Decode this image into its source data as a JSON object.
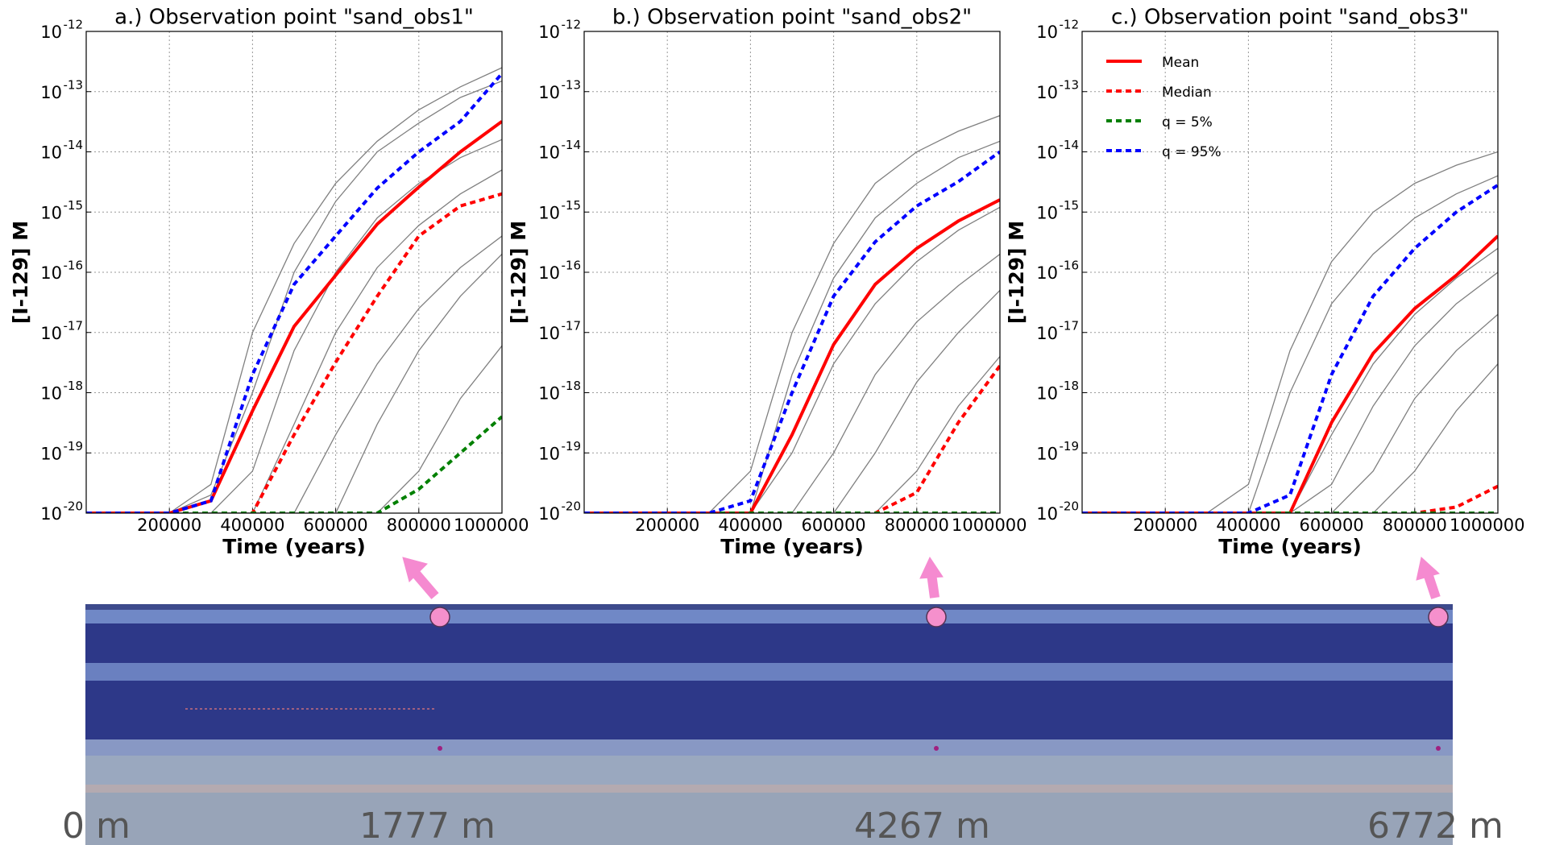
{
  "chart_data": [
    {
      "type": "line",
      "title": "a.) Observation point \"sand_obs1\"",
      "xlabel": "Time (years)",
      "ylabel": "[I-129] M",
      "x": [
        0,
        100000,
        200000,
        300000,
        400000,
        500000,
        600000,
        700000,
        800000,
        900000,
        1000000
      ],
      "xlim": [
        0,
        1000000
      ],
      "xticks": [
        200000,
        400000,
        600000,
        800000,
        1000000
      ],
      "ylim": [
        1e-20,
        1e-12
      ],
      "log_y": true,
      "grid": true,
      "yticks": [
        {
          "value": 1e-20,
          "label": "10",
          "exponent": "-20"
        },
        {
          "value": 1e-19,
          "label": "10",
          "exponent": "-19"
        },
        {
          "value": 1e-18,
          "label": "10",
          "exponent": "-18"
        },
        {
          "value": 1e-17,
          "label": "10",
          "exponent": "-17"
        },
        {
          "value": 1e-16,
          "label": "10",
          "exponent": "-16"
        },
        {
          "value": 1e-15,
          "label": "10",
          "exponent": "-15"
        },
        {
          "value": 1e-14,
          "label": "10",
          "exponent": "-14"
        },
        {
          "value": 1e-13,
          "label": "10",
          "exponent": "-13"
        },
        {
          "value": 1e-12,
          "label": "10",
          "exponent": "-12"
        }
      ],
      "series": [
        {
          "color": "#808080",
          "values": [
            1e-20,
            1e-20,
            1e-20,
            3e-20,
            1e-17,
            3e-16,
            3e-15,
            1.5e-14,
            5e-14,
            1.2e-13,
            2.5e-13
          ]
        },
        {
          "color": "#808080",
          "values": [
            1e-20,
            1e-20,
            1e-20,
            1e-20,
            5e-20,
            5e-18,
            1e-16,
            8e-16,
            3e-15,
            8e-15,
            1.6e-14
          ]
        },
        {
          "color": "#808080",
          "values": [
            1e-20,
            1e-20,
            1e-20,
            1e-20,
            1e-20,
            3e-19,
            1e-17,
            1.2e-16,
            6e-16,
            2e-15,
            5e-15
          ]
        },
        {
          "color": "#808080",
          "values": [
            1e-20,
            1e-20,
            1e-20,
            1e-20,
            1e-20,
            1e-20,
            2e-19,
            3e-18,
            2.5e-17,
            1.2e-16,
            4e-16
          ]
        },
        {
          "color": "#808080",
          "values": [
            1e-20,
            1e-20,
            1e-20,
            1e-20,
            1e-20,
            1e-20,
            1e-20,
            3e-19,
            5e-18,
            4e-17,
            2e-16
          ]
        },
        {
          "color": "#808080",
          "values": [
            1e-20,
            1e-20,
            1e-20,
            1e-20,
            1e-20,
            1e-20,
            1e-20,
            1e-20,
            5e-20,
            8e-19,
            6e-18
          ]
        },
        {
          "color": "#808080",
          "values": [
            1e-20,
            1e-20,
            1e-20,
            2e-20,
            1e-18,
            1e-16,
            1.5e-15,
            1e-14,
            3e-14,
            8e-14,
            1.5e-13
          ]
        },
        {
          "name": "Mean",
          "color": "#ff0000",
          "linestyle": "solid",
          "values": [
            1e-20,
            1e-20,
            1e-20,
            1.6e-20,
            5e-19,
            1.26e-17,
            8.9e-17,
            6.3e-16,
            2.6e-15,
            1e-14,
            3.2e-14
          ]
        },
        {
          "name": "Median",
          "color": "#ff0000",
          "linestyle": "dashed",
          "values": [
            1e-20,
            1e-20,
            1e-20,
            1e-20,
            1e-20,
            2e-19,
            3.2e-18,
            4e-17,
            4e-16,
            1.26e-15,
            2e-15
          ]
        },
        {
          "name": "q = 5%",
          "color": "#008000",
          "linestyle": "dashed",
          "values": [
            1e-20,
            1e-20,
            1e-20,
            1e-20,
            1e-20,
            1e-20,
            1e-20,
            1e-20,
            2.5e-20,
            1e-19,
            4e-19
          ]
        },
        {
          "name": "q = 95%",
          "color": "#0000ff",
          "linestyle": "dashed",
          "values": [
            1e-20,
            1e-20,
            1e-20,
            1.6e-20,
            2e-18,
            6.3e-17,
            4e-16,
            2.5e-15,
            1e-14,
            3.2e-14,
            2e-13
          ]
        }
      ]
    },
    {
      "type": "line",
      "title": "b.) Observation point \"sand_obs2\"",
      "xlabel": "Time (years)",
      "ylabel": "[I-129] M",
      "x": [
        0,
        100000,
        200000,
        300000,
        400000,
        500000,
        600000,
        700000,
        800000,
        900000,
        1000000
      ],
      "xlim": [
        0,
        1000000
      ],
      "xticks": [
        200000,
        400000,
        600000,
        800000,
        1000000
      ],
      "ylim": [
        1e-20,
        1e-12
      ],
      "log_y": true,
      "grid": true,
      "yticks": [
        {
          "value": 1e-20,
          "label": "10",
          "exponent": "-20"
        },
        {
          "value": 1e-19,
          "label": "10",
          "exponent": "-19"
        },
        {
          "value": 1e-18,
          "label": "10",
          "exponent": "-18"
        },
        {
          "value": 1e-17,
          "label": "10",
          "exponent": "-17"
        },
        {
          "value": 1e-16,
          "label": "10",
          "exponent": "-16"
        },
        {
          "value": 1e-15,
          "label": "10",
          "exponent": "-15"
        },
        {
          "value": 1e-14,
          "label": "10",
          "exponent": "-14"
        },
        {
          "value": 1e-13,
          "label": "10",
          "exponent": "-13"
        },
        {
          "value": 1e-12,
          "label": "10",
          "exponent": "-12"
        }
      ],
      "series": [
        {
          "color": "#808080",
          "values": [
            1e-20,
            1e-20,
            1e-20,
            1e-20,
            5e-20,
            1e-17,
            3e-16,
            3e-15,
            1e-14,
            2.2e-14,
            4e-14
          ]
        },
        {
          "color": "#808080",
          "values": [
            1e-20,
            1e-20,
            1e-20,
            1e-20,
            1e-20,
            2e-18,
            8e-17,
            8e-16,
            3e-15,
            8e-15,
            1.5e-14
          ]
        },
        {
          "color": "#808080",
          "values": [
            1e-20,
            1e-20,
            1e-20,
            1e-20,
            1e-20,
            1e-19,
            3e-18,
            3e-17,
            1.5e-16,
            5e-16,
            1.2e-15
          ]
        },
        {
          "color": "#808080",
          "values": [
            1e-20,
            1e-20,
            1e-20,
            1e-20,
            1e-20,
            1e-20,
            1e-19,
            2e-18,
            1.5e-17,
            6e-17,
            2e-16
          ]
        },
        {
          "color": "#808080",
          "values": [
            1e-20,
            1e-20,
            1e-20,
            1e-20,
            1e-20,
            1e-20,
            1e-20,
            1e-19,
            1.5e-18,
            1e-17,
            5e-17
          ]
        },
        {
          "color": "#808080",
          "values": [
            1e-20,
            1e-20,
            1e-20,
            1e-20,
            1e-20,
            1e-20,
            1e-20,
            1e-20,
            5e-20,
            6e-19,
            4e-18
          ]
        },
        {
          "name": "Mean",
          "color": "#ff0000",
          "linestyle": "solid",
          "values": [
            1e-20,
            1e-20,
            1e-20,
            1e-20,
            1e-20,
            2e-19,
            6.3e-18,
            6.3e-17,
            2.5e-16,
            7.1e-16,
            1.6e-15
          ]
        },
        {
          "name": "Median",
          "color": "#ff0000",
          "linestyle": "dashed",
          "values": [
            1e-20,
            1e-20,
            1e-20,
            1e-20,
            1e-20,
            1e-20,
            1e-20,
            1e-20,
            2.2e-20,
            3.2e-19,
            2.8e-18
          ]
        },
        {
          "name": "q = 5%",
          "color": "#008000",
          "linestyle": "dashed",
          "values": [
            1e-20,
            1e-20,
            1e-20,
            1e-20,
            1e-20,
            1e-20,
            1e-20,
            1e-20,
            1e-20,
            1e-20,
            1e-20
          ]
        },
        {
          "name": "q = 95%",
          "color": "#0000ff",
          "linestyle": "dashed",
          "values": [
            1e-20,
            1e-20,
            1e-20,
            1e-20,
            1.6e-20,
            1e-18,
            4e-17,
            3.2e-16,
            1.26e-15,
            3.2e-15,
            1e-14
          ]
        }
      ]
    },
    {
      "type": "line",
      "title": "c.) Observation point \"sand_obs3\"",
      "xlabel": "Time (years)",
      "ylabel": "[I-129] M",
      "x": [
        0,
        100000,
        200000,
        300000,
        400000,
        500000,
        600000,
        700000,
        800000,
        900000,
        1000000
      ],
      "xlim": [
        0,
        1000000
      ],
      "xticks": [
        200000,
        400000,
        600000,
        800000,
        1000000
      ],
      "ylim": [
        1e-20,
        1e-12
      ],
      "log_y": true,
      "grid": true,
      "legend": "upper left",
      "yticks": [
        {
          "value": 1e-20,
          "label": "10",
          "exponent": "-20"
        },
        {
          "value": 1e-19,
          "label": "10",
          "exponent": "-19"
        },
        {
          "value": 1e-18,
          "label": "10",
          "exponent": "-18"
        },
        {
          "value": 1e-17,
          "label": "10",
          "exponent": "-17"
        },
        {
          "value": 1e-16,
          "label": "10",
          "exponent": "-16"
        },
        {
          "value": 1e-15,
          "label": "10",
          "exponent": "-15"
        },
        {
          "value": 1e-14,
          "label": "10",
          "exponent": "-14"
        },
        {
          "value": 1e-13,
          "label": "10",
          "exponent": "-13"
        },
        {
          "value": 1e-12,
          "label": "10",
          "exponent": "-12"
        }
      ],
      "series": [
        {
          "color": "#808080",
          "values": [
            1e-20,
            1e-20,
            1e-20,
            1e-20,
            3e-20,
            5e-18,
            1.5e-16,
            1e-15,
            3e-15,
            6e-15,
            1e-14
          ]
        },
        {
          "color": "#808080",
          "values": [
            1e-20,
            1e-20,
            1e-20,
            1e-20,
            1e-20,
            1e-18,
            3e-17,
            2e-16,
            8e-16,
            2e-15,
            4e-15
          ]
        },
        {
          "color": "#808080",
          "values": [
            1e-20,
            1e-20,
            1e-20,
            1e-20,
            1e-20,
            1e-20,
            2e-19,
            3e-18,
            2e-17,
            8e-17,
            2.5e-16
          ]
        },
        {
          "color": "#808080",
          "values": [
            1e-20,
            1e-20,
            1e-20,
            1e-20,
            1e-20,
            1e-20,
            3e-20,
            6e-19,
            6e-18,
            3e-17,
            1e-16
          ]
        },
        {
          "color": "#808080",
          "values": [
            1e-20,
            1e-20,
            1e-20,
            1e-20,
            1e-20,
            1e-20,
            1e-20,
            5e-20,
            8e-19,
            5e-18,
            2e-17
          ]
        },
        {
          "color": "#808080",
          "values": [
            1e-20,
            1e-20,
            1e-20,
            1e-20,
            1e-20,
            1e-20,
            1e-20,
            1e-20,
            5e-20,
            5e-19,
            3e-18
          ]
        },
        {
          "name": "Mean",
          "color": "#ff0000",
          "linestyle": "solid",
          "values": [
            1e-20,
            1e-20,
            1e-20,
            1e-20,
            1e-20,
            1e-20,
            3.2e-19,
            4.5e-18,
            2.5e-17,
            8.9e-17,
            4e-16
          ]
        },
        {
          "name": "Median",
          "color": "#ff0000",
          "linestyle": "dashed",
          "values": [
            1e-20,
            1e-20,
            1e-20,
            1e-20,
            1e-20,
            1e-20,
            1e-20,
            1e-20,
            1e-20,
            1.26e-20,
            2.8e-20
          ]
        },
        {
          "name": "q = 5%",
          "color": "#008000",
          "linestyle": "dashed",
          "values": [
            1e-20,
            1e-20,
            1e-20,
            1e-20,
            1e-20,
            1e-20,
            1e-20,
            1e-20,
            1e-20,
            1e-20,
            1e-20
          ]
        },
        {
          "name": "q = 95%",
          "color": "#0000ff",
          "linestyle": "dashed",
          "values": [
            1e-20,
            1e-20,
            1e-20,
            1e-20,
            1e-20,
            2e-20,
            2e-18,
            4e-17,
            2.5e-16,
            1e-15,
            2.8e-15
          ]
        }
      ]
    }
  ],
  "section": {
    "labels": [
      "0 m",
      "1777 m",
      "4267 m",
      "6772 m"
    ]
  }
}
